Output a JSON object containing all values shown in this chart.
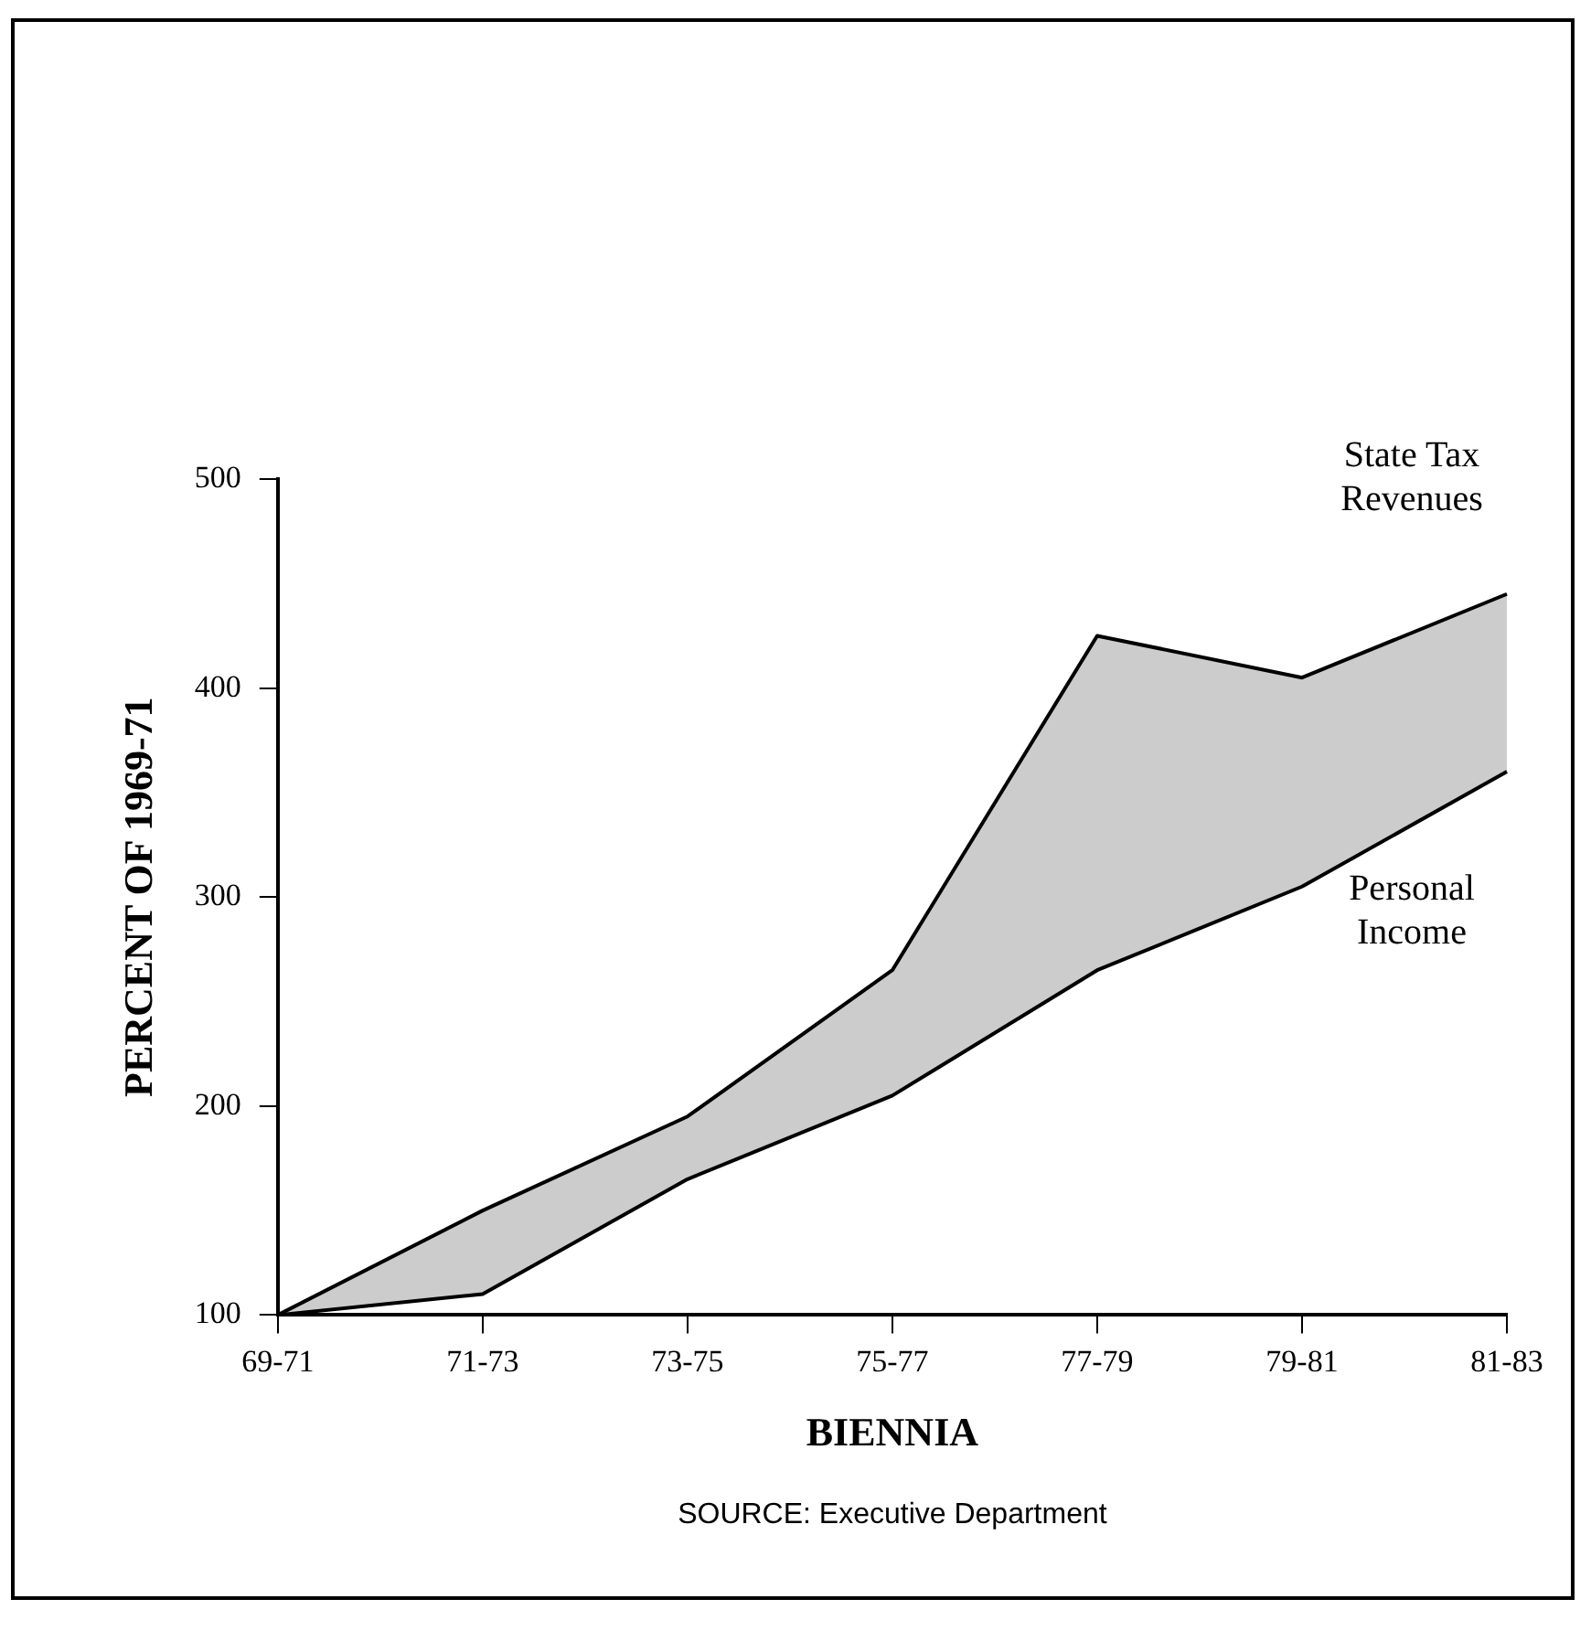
{
  "chart_data": {
    "type": "line",
    "xlabel": "BIENNIA",
    "ylabel": "PERCENT OF 1969-71",
    "categories": [
      "69-71",
      "71-73",
      "73-75",
      "75-77",
      "77-79",
      "79-81",
      "81-83"
    ],
    "series": [
      {
        "name": "Personal Income",
        "type": "line",
        "color": "#000000",
        "values": [
          100,
          110,
          165,
          205,
          265,
          305,
          360
        ]
      },
      {
        "name": "State Tax Revenues",
        "type": "area",
        "color": "#000000",
        "values": [
          100,
          150,
          195,
          265,
          425,
          405,
          445
        ]
      }
    ],
    "ylim": [
      100,
      500
    ],
    "yticks": [
      100,
      200,
      300,
      400,
      500
    ],
    "grid": false,
    "legend": false,
    "marker": "none",
    "line_style": "solid",
    "annotations": [
      "SOURCE: Executive Department"
    ]
  }
}
